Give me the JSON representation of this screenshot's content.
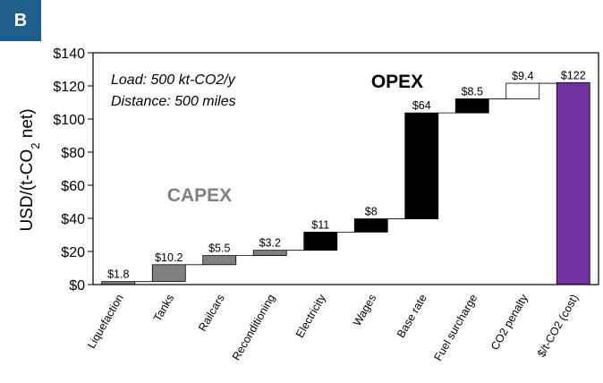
{
  "panel_label": "B",
  "colors": {
    "panel_badge": "#1f5f8b",
    "capex": "#808080",
    "opex": "#000000",
    "penalty": "#ffffff",
    "total": "#7030a0",
    "capex_text": "#808080",
    "opex_text": "#000000"
  },
  "chart_data": {
    "type": "bar",
    "subtype": "waterfall",
    "ylabel_main": "USD/(t-CO",
    "ylabel_sub": "2",
    "ylabel_end": " net)",
    "ylim": [
      0,
      140
    ],
    "yticks": [
      0,
      20,
      40,
      60,
      80,
      100,
      120,
      140
    ],
    "ytick_labels": [
      "$0",
      "$20",
      "$40",
      "$60",
      "$80",
      "$100",
      "$120",
      "$140"
    ],
    "grid": false,
    "categories": [
      "Liquefaction",
      "Tanks",
      "Railcars",
      "Reconditioning",
      "Electricity",
      "Wages",
      "Base rate",
      "Fuel surcharge",
      "CO2 penalty",
      "$/t-CO2 (cost)"
    ],
    "values": [
      1.8,
      10.2,
      5.5,
      3.2,
      11,
      8,
      64,
      8.5,
      9.4,
      122
    ],
    "value_labels": [
      "$1.8",
      "$10.2",
      "$5.5",
      "$3.2",
      "$11",
      "$8",
      "$64",
      "$8.5",
      "$9.4",
      "$122"
    ],
    "groups": [
      "capex",
      "capex",
      "capex",
      "capex",
      "opex",
      "opex",
      "opex",
      "opex",
      "penalty",
      "total"
    ],
    "annotations": {
      "load": "Load: 500 kt-CO2/y",
      "distance": "Distance: 500 miles",
      "capex": "CAPEX",
      "opex": "OPEX"
    }
  }
}
